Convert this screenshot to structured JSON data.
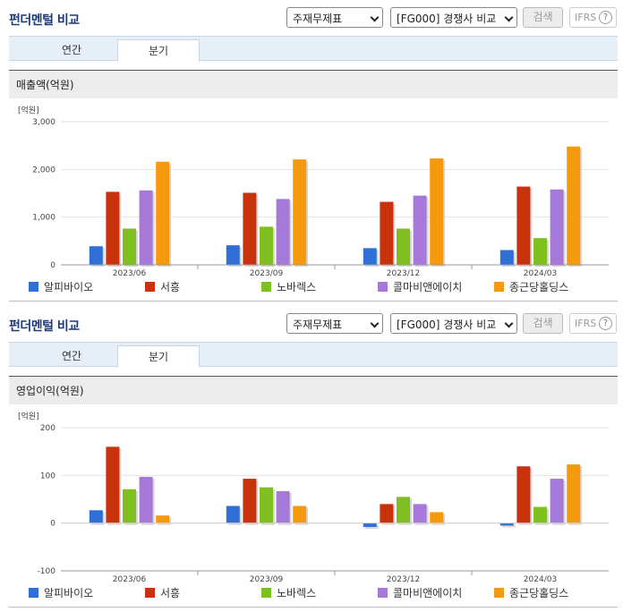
{
  "sections": [
    {
      "title": "펀더멘털 비교",
      "select1": "주재무제표",
      "select2": "[FG000] 경쟁사 비교",
      "search_label": "검색",
      "ifrs_label": "IFRS",
      "help_label": "?",
      "tabs": [
        "연간",
        "분기"
      ],
      "active_tab": "분기",
      "metric_title": "매출액(억원)"
    },
    {
      "title": "펀더멘털 비교",
      "select1": "주재무제표",
      "select2": "[FG000] 경쟁사 비교",
      "search_label": "검색",
      "ifrs_label": "IFRS",
      "help_label": "?",
      "tabs": [
        "연간",
        "분기"
      ],
      "active_tab": "분기",
      "metric_title": "영업이익(억원)"
    }
  ],
  "colors": {
    "알피바이오": "#2f6fd6",
    "서흥": "#c8330e",
    "노바렉스": "#7fbf1f",
    "콜마비앤에이치": "#a679d8",
    "종근당홀딩스": "#f59a0c"
  },
  "chart_data": [
    {
      "type": "bar",
      "unit_label": "[억원]",
      "categories": [
        "2023/06",
        "2023/09",
        "2023/12",
        "2024/03"
      ],
      "ylim": [
        0,
        3000
      ],
      "yticks": [
        0,
        1000,
        2000,
        3000
      ],
      "ytick_labels": [
        "0",
        "1,000",
        "2,000",
        "3,000"
      ],
      "grid": true,
      "series": [
        {
          "name": "알피바이오",
          "values": [
            390,
            410,
            350,
            310
          ]
        },
        {
          "name": "서흥",
          "values": [
            1530,
            1510,
            1320,
            1640
          ]
        },
        {
          "name": "노바렉스",
          "values": [
            760,
            800,
            760,
            560
          ]
        },
        {
          "name": "콜마비앤에이치",
          "values": [
            1560,
            1380,
            1450,
            1580
          ]
        },
        {
          "name": "종근당홀딩스",
          "values": [
            2160,
            2210,
            2230,
            2480
          ]
        }
      ]
    },
    {
      "type": "bar",
      "unit_label": "[억원]",
      "categories": [
        "2023/06",
        "2023/09",
        "2023/12",
        "2024/03"
      ],
      "ylim": [
        -100,
        200
      ],
      "yticks": [
        -100,
        0,
        100,
        200
      ],
      "ytick_labels": [
        "-100",
        "0",
        "100",
        "200"
      ],
      "grid": true,
      "series": [
        {
          "name": "알피바이오",
          "values": [
            27,
            36,
            -8,
            -5
          ]
        },
        {
          "name": "서흥",
          "values": [
            160,
            93,
            40,
            119
          ]
        },
        {
          "name": "노바렉스",
          "values": [
            71,
            75,
            55,
            34
          ]
        },
        {
          "name": "콜마비앤에이치",
          "values": [
            97,
            67,
            40,
            93
          ]
        },
        {
          "name": "종근당홀딩스",
          "values": [
            16,
            36,
            23,
            123
          ]
        }
      ]
    }
  ]
}
